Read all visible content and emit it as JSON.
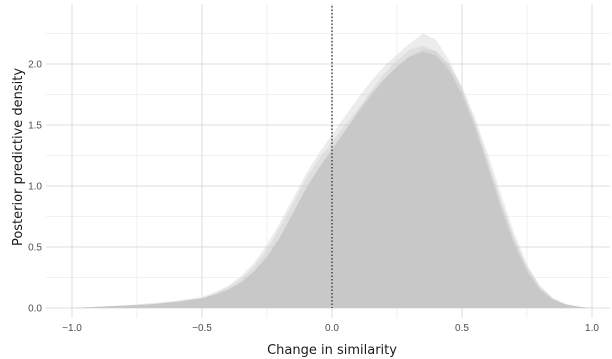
{
  "chart_data": {
    "type": "area",
    "title": "",
    "xlabel": "Change in similarity",
    "ylabel": "Posterior predictive density",
    "xlim": [
      -1.0,
      1.0
    ],
    "ylim": [
      0.0,
      2.35
    ],
    "x_ticks": [
      {
        "value": -1.0,
        "label": "−1.0"
      },
      {
        "value": -0.5,
        "label": "−0.5"
      },
      {
        "value": 0.0,
        "label": "0.0"
      },
      {
        "value": 0.5,
        "label": "0.5"
      },
      {
        "value": 1.0,
        "label": "1.0"
      }
    ],
    "y_ticks": [
      {
        "value": 0.0,
        "label": "0.0"
      },
      {
        "value": 0.5,
        "label": "0.5"
      },
      {
        "value": 1.0,
        "label": "1.0"
      },
      {
        "value": 1.5,
        "label": "1.5"
      },
      {
        "value": 2.0,
        "label": "2.0"
      }
    ],
    "grid": true,
    "reference_line": {
      "x": 0.0,
      "style": "dotted"
    },
    "colors": {
      "fill": "#c8c8c8",
      "grid_major": "#dcdcdc",
      "grid_minor": "#ececec",
      "reference": "#333333"
    },
    "series": [
      {
        "x": [
          -1.0,
          -0.9,
          -0.8,
          -0.7,
          -0.6,
          -0.5,
          -0.45,
          -0.4,
          -0.35,
          -0.3,
          -0.25,
          -0.2,
          -0.15,
          -0.1,
          -0.05,
          0.0,
          0.05,
          0.1,
          0.15,
          0.2,
          0.25,
          0.3,
          0.35,
          0.4,
          0.45,
          0.5,
          0.55,
          0.6,
          0.65,
          0.7,
          0.75,
          0.8,
          0.85,
          0.9,
          0.95,
          1.0
        ],
        "y": [
          0.0,
          0.01,
          0.02,
          0.03,
          0.05,
          0.08,
          0.11,
          0.15,
          0.21,
          0.3,
          0.42,
          0.58,
          0.78,
          0.98,
          1.15,
          1.3,
          1.45,
          1.6,
          1.74,
          1.87,
          1.98,
          2.06,
          2.1,
          2.07,
          1.95,
          1.75,
          1.48,
          1.15,
          0.82,
          0.53,
          0.3,
          0.15,
          0.07,
          0.03,
          0.01,
          0.0
        ]
      },
      {
        "x": [
          -1.0,
          -0.9,
          -0.8,
          -0.7,
          -0.6,
          -0.5,
          -0.45,
          -0.4,
          -0.35,
          -0.3,
          -0.25,
          -0.2,
          -0.15,
          -0.1,
          -0.05,
          0.0,
          0.05,
          0.1,
          0.15,
          0.2,
          0.25,
          0.3,
          0.35,
          0.4,
          0.45,
          0.5,
          0.55,
          0.6,
          0.65,
          0.7,
          0.75,
          0.8,
          0.85,
          0.9,
          0.95,
          1.0
        ],
        "y": [
          0.0,
          0.01,
          0.02,
          0.04,
          0.06,
          0.09,
          0.13,
          0.18,
          0.26,
          0.37,
          0.52,
          0.7,
          0.9,
          1.1,
          1.27,
          1.42,
          1.57,
          1.72,
          1.86,
          1.98,
          2.08,
          2.17,
          2.25,
          2.2,
          2.03,
          1.8,
          1.52,
          1.2,
          0.88,
          0.58,
          0.34,
          0.18,
          0.08,
          0.03,
          0.01,
          0.0
        ]
      },
      {
        "x": [
          -1.0,
          -0.9,
          -0.8,
          -0.7,
          -0.6,
          -0.5,
          -0.45,
          -0.4,
          -0.35,
          -0.3,
          -0.25,
          -0.2,
          -0.15,
          -0.1,
          -0.05,
          0.0,
          0.05,
          0.1,
          0.15,
          0.2,
          0.25,
          0.3,
          0.35,
          0.4,
          0.45,
          0.5,
          0.55,
          0.6,
          0.65,
          0.7,
          0.75,
          0.8,
          0.85,
          0.9,
          0.95,
          1.0
        ],
        "y": [
          0.0,
          0.01,
          0.02,
          0.03,
          0.05,
          0.07,
          0.1,
          0.14,
          0.19,
          0.27,
          0.38,
          0.53,
          0.72,
          0.92,
          1.1,
          1.27,
          1.45,
          1.62,
          1.78,
          1.92,
          2.03,
          2.12,
          2.15,
          2.1,
          1.98,
          1.78,
          1.52,
          1.2,
          0.86,
          0.56,
          0.32,
          0.16,
          0.07,
          0.03,
          0.01,
          0.0
        ]
      },
      {
        "x": [
          -1.0,
          -0.9,
          -0.8,
          -0.7,
          -0.6,
          -0.5,
          -0.45,
          -0.4,
          -0.35,
          -0.3,
          -0.25,
          -0.2,
          -0.15,
          -0.1,
          -0.05,
          0.0,
          0.05,
          0.1,
          0.15,
          0.2,
          0.25,
          0.3,
          0.35,
          0.4,
          0.45,
          0.5,
          0.55,
          0.6,
          0.65,
          0.7,
          0.75,
          0.8,
          0.85,
          0.9,
          0.95,
          1.0
        ],
        "y": [
          0.0,
          0.01,
          0.02,
          0.03,
          0.05,
          0.08,
          0.12,
          0.17,
          0.24,
          0.34,
          0.48,
          0.66,
          0.86,
          1.06,
          1.22,
          1.36,
          1.5,
          1.63,
          1.76,
          1.88,
          1.98,
          2.07,
          2.12,
          2.11,
          2.0,
          1.82,
          1.56,
          1.26,
          0.93,
          0.62,
          0.36,
          0.18,
          0.08,
          0.03,
          0.01,
          0.0
        ]
      }
    ]
  }
}
